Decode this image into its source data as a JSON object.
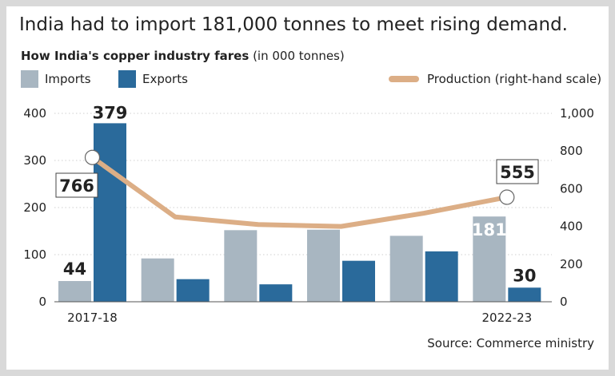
{
  "chart_data": {
    "type": "bar",
    "title": "India had to import 181,000 tonnes to meet rising demand.",
    "subtitle_bold": "How India's copper industry fares",
    "subtitle_rest": " (in 000 tonnes)",
    "categories": [
      "2017-18",
      "",
      "",
      "",
      "",
      "2022-23"
    ],
    "series": [
      {
        "name": "Imports",
        "values": [
          44,
          92,
          152,
          153,
          140,
          181
        ],
        "color": "#a8b6c1"
      },
      {
        "name": "Exports",
        "values": [
          379,
          48,
          37,
          87,
          107,
          30
        ],
        "color": "#2a6a9b"
      }
    ],
    "line_series": {
      "name": "Production (right-hand scale)",
      "values": [
        766,
        450,
        410,
        400,
        470,
        555
      ],
      "color": "#dcae86"
    },
    "left_axis": {
      "ylim": [
        0,
        400
      ],
      "ticks": [
        "0",
        "100",
        "200",
        "300",
        "400"
      ]
    },
    "right_axis": {
      "ylim": [
        0,
        1000
      ],
      "ticks": [
        "0",
        "200",
        "400",
        "600",
        "800",
        "1,000"
      ]
    },
    "data_labels": {
      "imports_first": "44",
      "exports_first": "379",
      "imports_last": "181",
      "exports_last": "30",
      "production_first": "766",
      "production_last": "555"
    },
    "grid": true,
    "legend": "top",
    "source": "Source: Commerce ministry"
  }
}
